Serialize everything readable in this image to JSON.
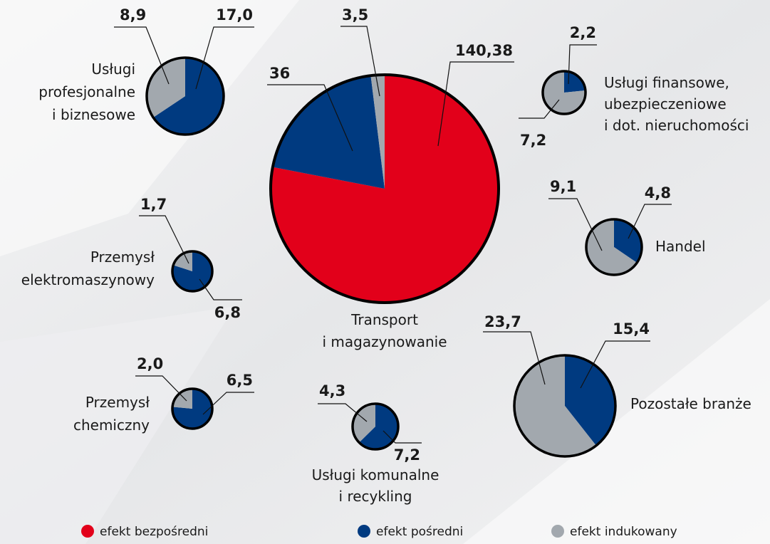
{
  "chart_data": [
    {
      "type": "pie",
      "title": [
        "Usługi",
        "profesjonalne",
        "i biznesowe"
      ],
      "values": [
        null,
        17.0,
        8.9
      ],
      "value_labels": [
        null,
        "17,0",
        "8,9"
      ]
    },
    {
      "type": "pie",
      "title": [
        "Transport",
        "i magazynowanie"
      ],
      "values": [
        140.38,
        36,
        3.5
      ],
      "value_labels": [
        "140,38",
        "36",
        "3,5"
      ]
    },
    {
      "type": "pie",
      "title": [
        "Usługi finansowe,",
        "ubezpieczeniowe",
        "i dot. nieruchomości"
      ],
      "values": [
        null,
        2.2,
        7.2
      ],
      "value_labels": [
        null,
        "2,2",
        "7,2"
      ]
    },
    {
      "type": "pie",
      "title": [
        "Handel"
      ],
      "values": [
        null,
        4.8,
        9.1
      ],
      "value_labels": [
        null,
        "4,8",
        "9,1"
      ]
    },
    {
      "type": "pie",
      "title": [
        "Przemysł",
        "elektromaszynowy"
      ],
      "values": [
        null,
        6.8,
        1.7
      ],
      "value_labels": [
        null,
        "6,8",
        "1,7"
      ]
    },
    {
      "type": "pie",
      "title": [
        "Przemysł",
        "chemiczny"
      ],
      "values": [
        null,
        6.5,
        2.0
      ],
      "value_labels": [
        null,
        "6,5",
        "2,0"
      ]
    },
    {
      "type": "pie",
      "title": [
        "Usługi komunalne",
        "i recykling"
      ],
      "values": [
        null,
        7.2,
        4.3
      ],
      "value_labels": [
        null,
        "7,2",
        "4,3"
      ]
    },
    {
      "type": "pie",
      "title": [
        "Pozostałe branże"
      ],
      "values": [
        null,
        15.4,
        23.7
      ],
      "value_labels": [
        null,
        "15,4",
        "23,7"
      ]
    }
  ],
  "legend": {
    "names": [
      "efekt bezpośredni",
      "efekt pośredni",
      "efekt indukowany"
    ],
    "colors": [
      "#e2001a",
      "#003a80",
      "#a2a8ae"
    ]
  }
}
